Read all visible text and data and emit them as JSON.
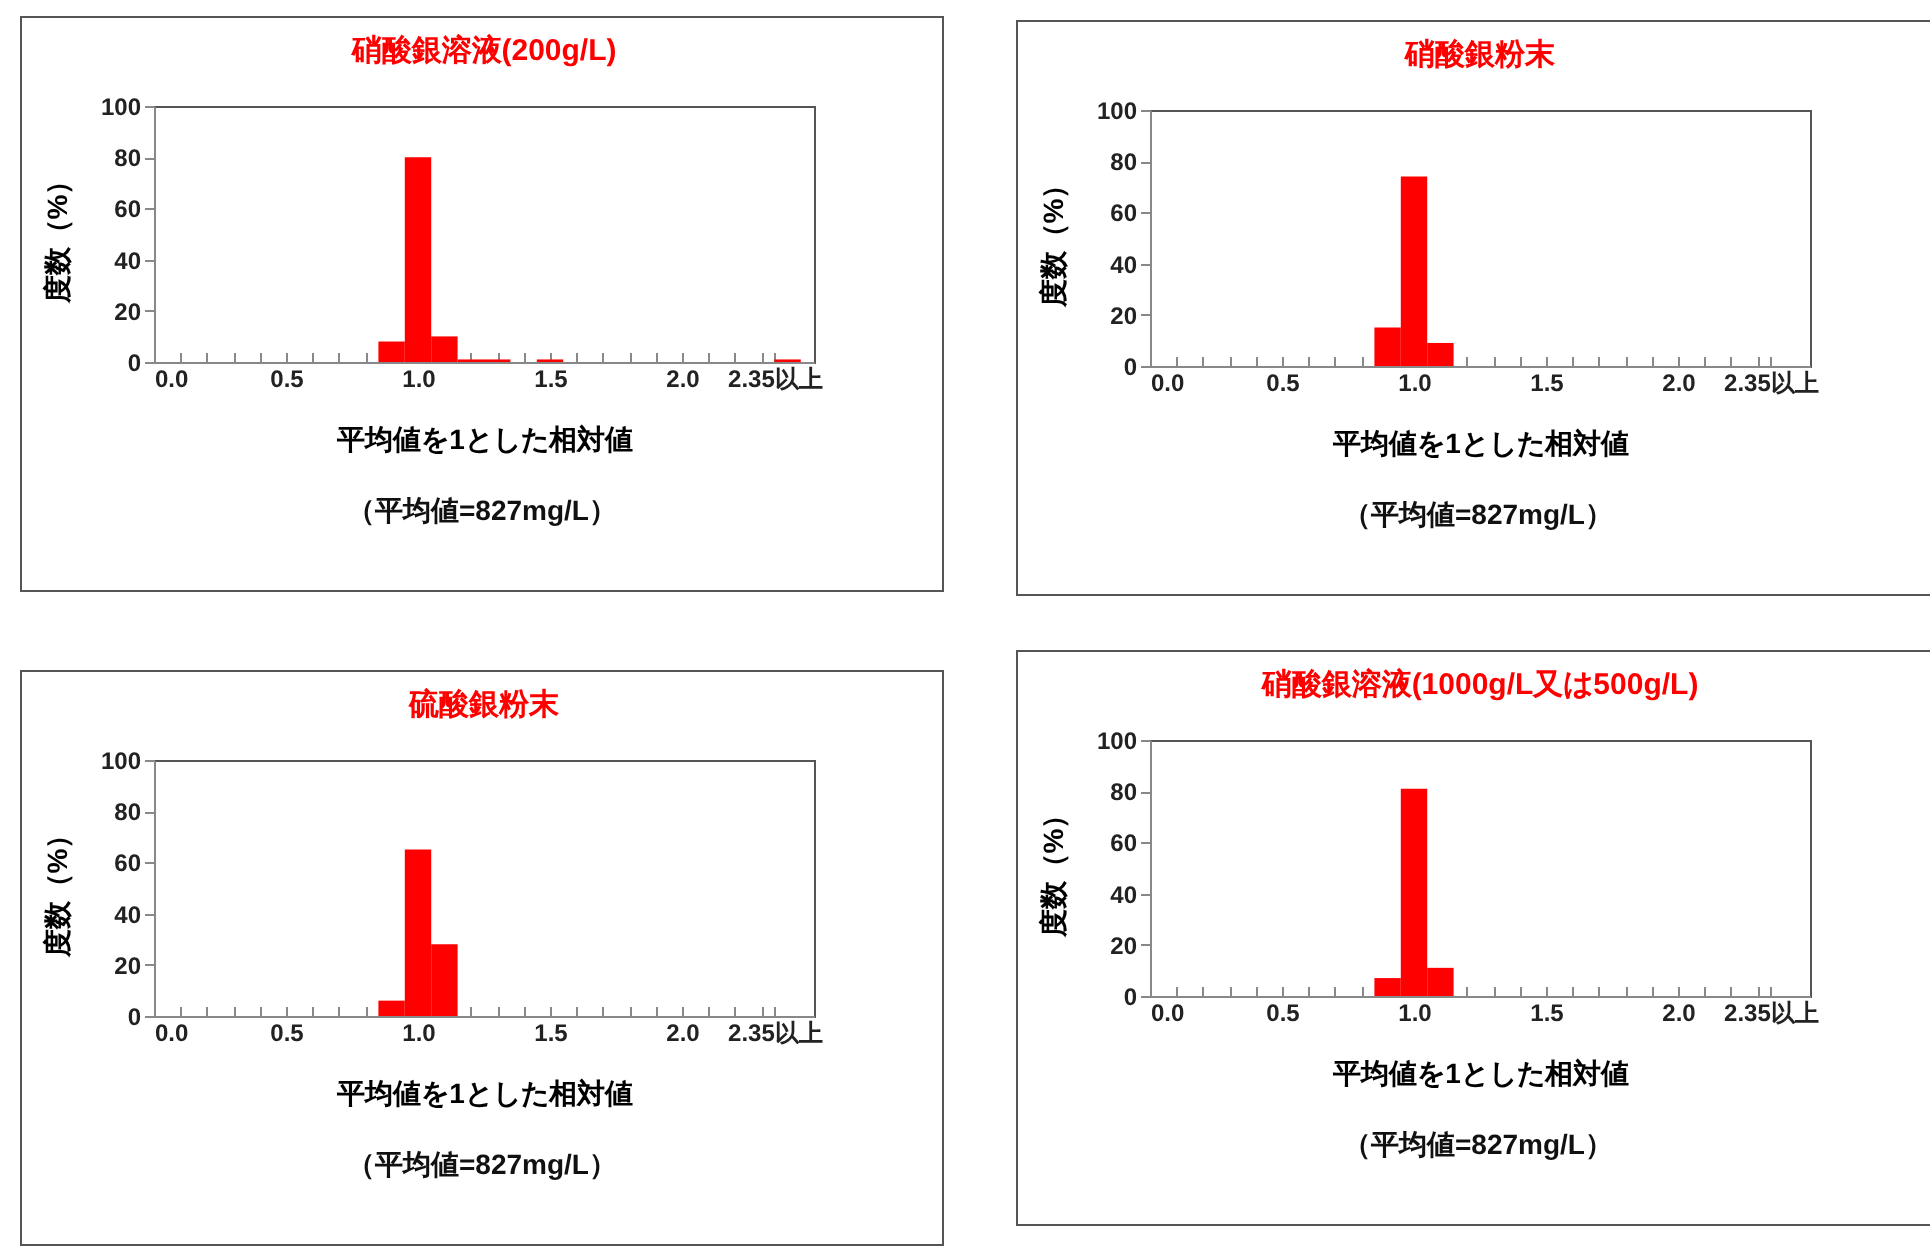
{
  "chart_data": [
    {
      "type": "histogram",
      "title": "硝酸銀溶液(200g/L)",
      "xlabel": "平均値を1とした相対値",
      "ylabel": "度数（%）",
      "annotations": [
        "（平均値=827mg/L）"
      ],
      "color": "#ff0000",
      "bins": [
        0.85,
        0.95,
        1.05,
        1.15,
        1.25,
        1.35,
        1.45,
        1.55,
        1.65,
        1.75,
        1.85,
        1.95,
        2.05,
        2.15,
        2.25,
        2.35,
        2.45
      ],
      "values": [
        8,
        80,
        10,
        1,
        1,
        0,
        1,
        0,
        0,
        0,
        0,
        0,
        0,
        0,
        0,
        1
      ],
      "xlim": [
        0,
        2.5
      ],
      "xticks": [
        {
          "value": 0,
          "label": "0.0"
        },
        {
          "value": 0.1,
          "label": null
        },
        {
          "value": 0.2,
          "label": null
        },
        {
          "value": 0.3,
          "label": null
        },
        {
          "value": 0.4,
          "label": null
        },
        {
          "value": 0.5,
          "label": "0.5"
        },
        {
          "value": 0.6,
          "label": null
        },
        {
          "value": 0.7,
          "label": null
        },
        {
          "value": 0.8,
          "label": null
        },
        {
          "value": 0.9,
          "label": null
        },
        {
          "value": 1,
          "label": "1.0"
        },
        {
          "value": 1.1,
          "label": null
        },
        {
          "value": 1.2,
          "label": null
        },
        {
          "value": 1.3,
          "label": null
        },
        {
          "value": 1.4,
          "label": null
        },
        {
          "value": 1.5,
          "label": "1.5"
        },
        {
          "value": 1.6,
          "label": null
        },
        {
          "value": 1.7,
          "label": null
        },
        {
          "value": 1.8,
          "label": null
        },
        {
          "value": 1.9,
          "label": null
        },
        {
          "value": 2,
          "label": "2.0"
        },
        {
          "value": 2.1,
          "label": null
        },
        {
          "value": 2.2,
          "label": null
        },
        {
          "value": 2.3,
          "label": null
        },
        {
          "value": 2.35,
          "label": "2.35以上"
        }
      ],
      "ylim": [
        0,
        100
      ],
      "yticks": [
        0,
        20,
        40,
        60,
        80,
        100
      ]
    },
    {
      "type": "histogram",
      "title": "硝酸銀粉末",
      "xlabel": "平均値を1とした相対値",
      "ylabel": "度数（%）",
      "annotations": [
        "（平均値=827mg/L）"
      ],
      "color": "#ff0000",
      "bins": [
        0.85,
        0.95,
        1.05,
        1.15
      ],
      "values": [
        15,
        74,
        9
      ],
      "xlim": [
        0,
        2.5
      ],
      "xticks": [
        {
          "value": 0,
          "label": "0.0"
        },
        {
          "value": 0.1,
          "label": null
        },
        {
          "value": 0.2,
          "label": null
        },
        {
          "value": 0.3,
          "label": null
        },
        {
          "value": 0.4,
          "label": null
        },
        {
          "value": 0.5,
          "label": "0.5"
        },
        {
          "value": 0.6,
          "label": null
        },
        {
          "value": 0.7,
          "label": null
        },
        {
          "value": 0.8,
          "label": null
        },
        {
          "value": 0.9,
          "label": null
        },
        {
          "value": 1,
          "label": "1.0"
        },
        {
          "value": 1.1,
          "label": null
        },
        {
          "value": 1.2,
          "label": null
        },
        {
          "value": 1.3,
          "label": null
        },
        {
          "value": 1.4,
          "label": null
        },
        {
          "value": 1.5,
          "label": "1.5"
        },
        {
          "value": 1.6,
          "label": null
        },
        {
          "value": 1.7,
          "label": null
        },
        {
          "value": 1.8,
          "label": null
        },
        {
          "value": 1.9,
          "label": null
        },
        {
          "value": 2,
          "label": "2.0"
        },
        {
          "value": 2.1,
          "label": null
        },
        {
          "value": 2.2,
          "label": null
        },
        {
          "value": 2.3,
          "label": null
        },
        {
          "value": 2.35,
          "label": "2.35以上"
        }
      ],
      "ylim": [
        0,
        100
      ],
      "yticks": [
        0,
        20,
        40,
        60,
        80,
        100
      ]
    },
    {
      "type": "histogram",
      "title": "硫酸銀粉末",
      "xlabel": "平均値を1とした相対値",
      "ylabel": "度数（%）",
      "annotations": [
        "（平均値=827mg/L）"
      ],
      "color": "#ff0000",
      "bins": [
        0.85,
        0.95,
        1.05,
        1.15
      ],
      "values": [
        6,
        65,
        28
      ],
      "xlim": [
        0,
        2.5
      ],
      "xticks": [
        {
          "value": 0,
          "label": "0.0"
        },
        {
          "value": 0.1,
          "label": null
        },
        {
          "value": 0.2,
          "label": null
        },
        {
          "value": 0.3,
          "label": null
        },
        {
          "value": 0.4,
          "label": null
        },
        {
          "value": 0.5,
          "label": "0.5"
        },
        {
          "value": 0.6,
          "label": null
        },
        {
          "value": 0.7,
          "label": null
        },
        {
          "value": 0.8,
          "label": null
        },
        {
          "value": 0.9,
          "label": null
        },
        {
          "value": 1,
          "label": "1.0"
        },
        {
          "value": 1.1,
          "label": null
        },
        {
          "value": 1.2,
          "label": null
        },
        {
          "value": 1.3,
          "label": null
        },
        {
          "value": 1.4,
          "label": null
        },
        {
          "value": 1.5,
          "label": "1.5"
        },
        {
          "value": 1.6,
          "label": null
        },
        {
          "value": 1.7,
          "label": null
        },
        {
          "value": 1.8,
          "label": null
        },
        {
          "value": 1.9,
          "label": null
        },
        {
          "value": 2,
          "label": "2.0"
        },
        {
          "value": 2.1,
          "label": null
        },
        {
          "value": 2.2,
          "label": null
        },
        {
          "value": 2.3,
          "label": null
        },
        {
          "value": 2.35,
          "label": "2.35以上"
        }
      ],
      "ylim": [
        0,
        100
      ],
      "yticks": [
        0,
        20,
        40,
        60,
        80,
        100
      ]
    },
    {
      "type": "histogram",
      "title": "硝酸銀溶液(1000g/L又は500g/L)",
      "xlabel": "平均値を1とした相対値",
      "ylabel": "度数（%）",
      "annotations": [
        "（平均値=827mg/L）"
      ],
      "color": "#ff0000",
      "bins": [
        0.85,
        0.95,
        1.05,
        1.15
      ],
      "values": [
        7,
        81,
        11
      ],
      "xlim": [
        0,
        2.5
      ],
      "xticks": [
        {
          "value": 0,
          "label": "0.0"
        },
        {
          "value": 0.1,
          "label": null
        },
        {
          "value": 0.2,
          "label": null
        },
        {
          "value": 0.3,
          "label": null
        },
        {
          "value": 0.4,
          "label": null
        },
        {
          "value": 0.5,
          "label": "0.5"
        },
        {
          "value": 0.6,
          "label": null
        },
        {
          "value": 0.7,
          "label": null
        },
        {
          "value": 0.8,
          "label": null
        },
        {
          "value": 0.9,
          "label": null
        },
        {
          "value": 1,
          "label": "1.0"
        },
        {
          "value": 1.1,
          "label": null
        },
        {
          "value": 1.2,
          "label": null
        },
        {
          "value": 1.3,
          "label": null
        },
        {
          "value": 1.4,
          "label": null
        },
        {
          "value": 1.5,
          "label": "1.5"
        },
        {
          "value": 1.6,
          "label": null
        },
        {
          "value": 1.7,
          "label": null
        },
        {
          "value": 1.8,
          "label": null
        },
        {
          "value": 1.9,
          "label": null
        },
        {
          "value": 2,
          "label": "2.0"
        },
        {
          "value": 2.1,
          "label": null
        },
        {
          "value": 2.2,
          "label": null
        },
        {
          "value": 2.3,
          "label": null
        },
        {
          "value": 2.35,
          "label": "2.35以上"
        }
      ],
      "ylim": [
        0,
        100
      ],
      "yticks": [
        0,
        20,
        40,
        60,
        80,
        100
      ]
    }
  ]
}
